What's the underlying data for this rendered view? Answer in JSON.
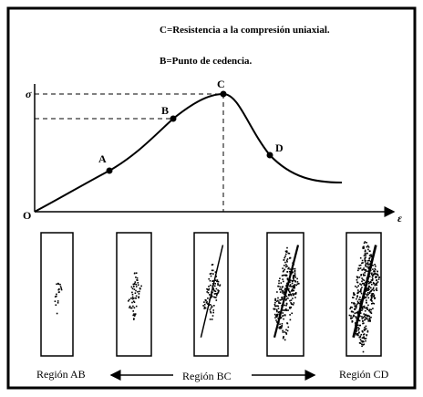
{
  "legend": {
    "line_c": "C=Resistencia a la compresión uniaxial.",
    "line_b": "B=Punto de cedencia."
  },
  "axes": {
    "y_label": "σ",
    "x_label": "ε",
    "origin": "O"
  },
  "points": {
    "a": "A",
    "b": "B",
    "c": "C",
    "d": "D"
  },
  "regions": {
    "ab": "Región AB",
    "bc": "Región BC",
    "cd": "Región CD"
  }
}
